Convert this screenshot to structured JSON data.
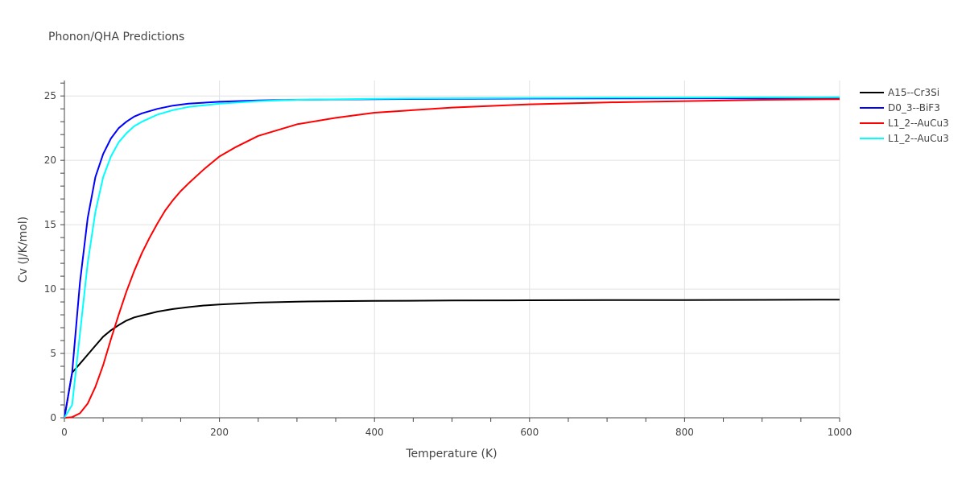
{
  "chart_data": {
    "type": "line",
    "title": "Phonon/QHA Predictions",
    "xlabel": "Temperature (K)",
    "ylabel": "Cv (J/K/mol)",
    "xlim": [
      0,
      1000
    ],
    "ylim": [
      0,
      26.2
    ],
    "x_ticks": [
      0,
      200,
      400,
      600,
      800,
      1000
    ],
    "y_ticks": [
      0,
      5,
      10,
      15,
      20,
      25
    ],
    "grid": true,
    "legend_position": "top-right",
    "series": [
      {
        "name": "A15--Cr3Si",
        "color": "#000000",
        "x": [
          0,
          10,
          20,
          30,
          40,
          50,
          60,
          70,
          80,
          90,
          100,
          120,
          140,
          160,
          180,
          200,
          250,
          300,
          350,
          400,
          500,
          600,
          700,
          800,
          900,
          1000
        ],
        "y": [
          0,
          3.5,
          4.2,
          4.9,
          5.6,
          6.3,
          6.8,
          7.2,
          7.55,
          7.8,
          7.95,
          8.25,
          8.45,
          8.6,
          8.72,
          8.8,
          8.95,
          9.02,
          9.06,
          9.08,
          9.11,
          9.13,
          9.14,
          9.15,
          9.16,
          9.18
        ]
      },
      {
        "name": "D0_3--BiF3",
        "color": "#0000ff",
        "x": [
          0,
          10,
          20,
          30,
          40,
          50,
          60,
          70,
          80,
          90,
          100,
          120,
          140,
          160,
          200,
          250,
          300,
          400,
          500,
          600,
          700,
          800,
          900,
          1000
        ],
        "y": [
          0,
          3.5,
          10.5,
          15.5,
          18.7,
          20.5,
          21.7,
          22.5,
          23.0,
          23.4,
          23.65,
          24.0,
          24.25,
          24.4,
          24.55,
          24.65,
          24.7,
          24.75,
          24.78,
          24.8,
          24.81,
          24.82,
          24.82,
          24.83
        ]
      },
      {
        "name": "L1_2--AuCu3",
        "color": "#ff0000",
        "x": [
          0,
          10,
          20,
          30,
          40,
          50,
          60,
          70,
          80,
          90,
          100,
          110,
          120,
          130,
          140,
          150,
          160,
          180,
          200,
          220,
          250,
          300,
          350,
          400,
          500,
          600,
          700,
          800,
          900,
          1000
        ],
        "y": [
          0,
          0.05,
          0.35,
          1.1,
          2.4,
          4.1,
          6.1,
          8.0,
          9.8,
          11.4,
          12.8,
          14.0,
          15.1,
          16.1,
          16.9,
          17.6,
          18.2,
          19.3,
          20.3,
          21.0,
          21.9,
          22.8,
          23.3,
          23.7,
          24.1,
          24.35,
          24.5,
          24.6,
          24.7,
          24.75
        ]
      },
      {
        "name": "L1_2--AuCu3",
        "color": "#00ffff",
        "x": [
          0,
          10,
          20,
          30,
          40,
          50,
          60,
          70,
          80,
          90,
          100,
          120,
          140,
          160,
          200,
          250,
          300,
          400,
          500,
          600,
          700,
          800,
          900,
          1000
        ],
        "y": [
          0,
          1.0,
          6.5,
          12.0,
          16.0,
          18.7,
          20.3,
          21.4,
          22.1,
          22.65,
          23.0,
          23.55,
          23.9,
          24.15,
          24.4,
          24.6,
          24.7,
          24.78,
          24.82,
          24.85,
          24.87,
          24.88,
          24.89,
          24.9
        ]
      }
    ]
  }
}
